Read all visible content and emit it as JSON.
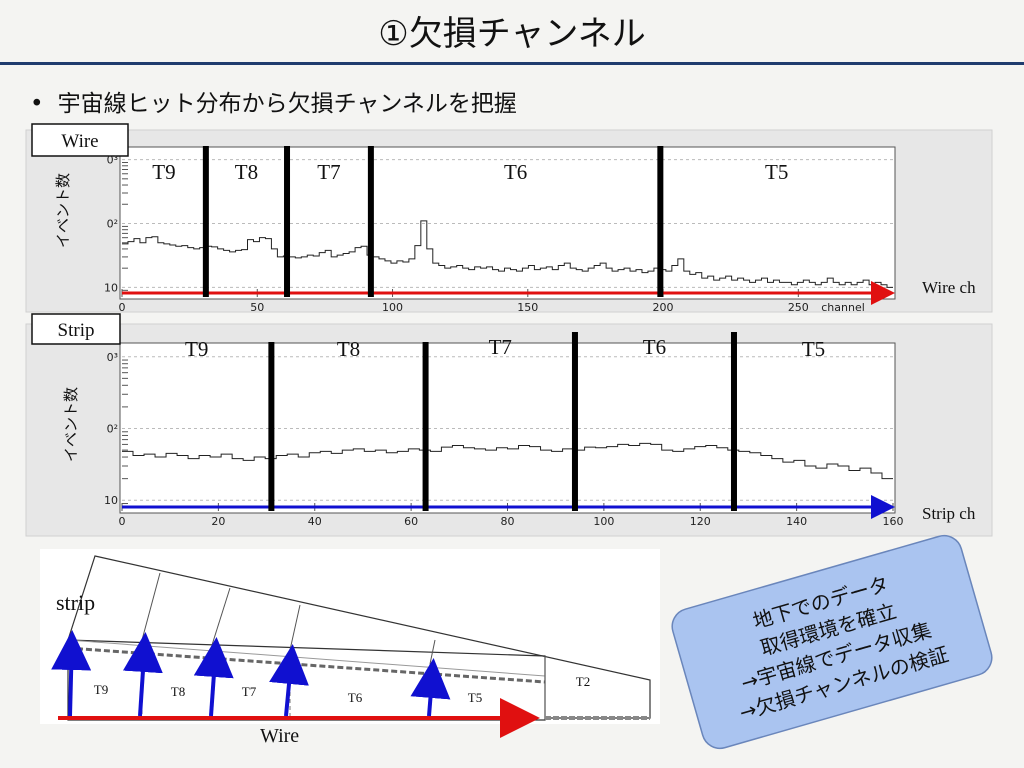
{
  "title": "①欠損チャンネル",
  "bullet": "宇宙線ヒット分布から欠損チャンネルを把握",
  "chart_data": [
    {
      "type": "line",
      "box_label": "Wire",
      "ylabel": "イベント数",
      "xlabel": "channel",
      "side_label": "Wire ch",
      "x_ticks": [
        "0",
        "50",
        "100",
        "150",
        "200",
        "250"
      ],
      "y_ticks": [
        "10",
        "0²",
        "0³"
      ],
      "x_range": [
        0,
        285
      ],
      "y_scale": "log",
      "zones": [
        "T9",
        "T8",
        "T7",
        "T6",
        "T5"
      ],
      "boundaries": [
        31,
        61,
        92,
        199
      ],
      "series": [
        {
          "values": [
            48,
            52,
            58,
            50,
            60,
            62,
            50,
            48,
            46,
            44,
            45,
            42,
            40,
            42,
            44,
            43,
            40,
            38,
            36,
            38,
            39,
            56,
            52,
            60,
            58,
            40,
            30,
            31,
            30,
            29,
            30,
            32,
            31,
            35,
            38,
            30,
            32,
            34,
            36,
            42,
            44,
            32,
            30,
            28,
            26,
            24,
            26,
            25,
            28,
            45,
            110,
            40,
            24,
            22,
            20,
            21,
            22,
            20,
            19,
            21,
            20,
            21,
            19,
            18,
            20,
            19,
            18,
            20,
            22,
            19,
            20,
            21,
            19,
            22,
            24,
            20,
            19,
            18,
            20,
            22,
            24,
            20,
            18,
            19,
            20,
            18,
            19,
            17,
            18,
            20,
            19,
            18,
            22,
            28,
            18,
            16,
            17,
            14,
            15,
            13,
            14,
            15,
            13,
            14,
            13,
            12,
            13,
            14,
            12,
            13,
            12,
            12,
            11,
            12,
            13,
            12,
            11,
            12,
            14,
            12,
            11,
            12,
            11,
            12,
            13,
            11,
            12,
            11,
            10
          ]
        }
      ]
    },
    {
      "type": "line",
      "box_label": "Strip",
      "ylabel": "イベント数",
      "side_label": "Strip ch",
      "x_ticks": [
        "0",
        "20",
        "40",
        "60",
        "80",
        "100",
        "120",
        "140",
        "160"
      ],
      "y_ticks": [
        "10",
        "0²",
        "0³"
      ],
      "x_range": [
        0,
        160
      ],
      "y_scale": "log",
      "zones": [
        "T9",
        "T8",
        "T7",
        "T6",
        "T5"
      ],
      "boundaries": [
        31,
        63,
        94,
        127
      ],
      "series": [
        {
          "values": [
            48,
            42,
            44,
            40,
            45,
            42,
            38,
            42,
            40,
            44,
            38,
            36,
            40,
            38,
            42,
            44,
            40,
            46,
            48,
            45,
            50,
            52,
            48,
            50,
            46,
            48,
            52,
            50,
            48,
            55,
            58,
            54,
            52,
            50,
            54,
            52,
            58,
            56,
            50,
            48,
            52,
            50,
            55,
            54,
            56,
            60,
            58,
            62,
            60,
            50,
            48,
            52,
            56,
            58,
            54,
            50,
            48,
            46,
            42,
            38,
            34,
            36,
            30,
            28,
            32,
            30,
            26,
            28,
            24,
            20
          ]
        }
      ]
    }
  ],
  "diagram": {
    "strip_label": "strip",
    "wire_label": "Wire",
    "sections": [
      "T9",
      "T8",
      "T7",
      "T6",
      "T5",
      "T2"
    ]
  },
  "callout": {
    "lines": [
      "地下でのデータ",
      "取得環境を確立",
      "→宇宙線でデータ収集",
      "→欠損チャンネルの検証"
    ],
    "fill": "#aac4f0"
  }
}
